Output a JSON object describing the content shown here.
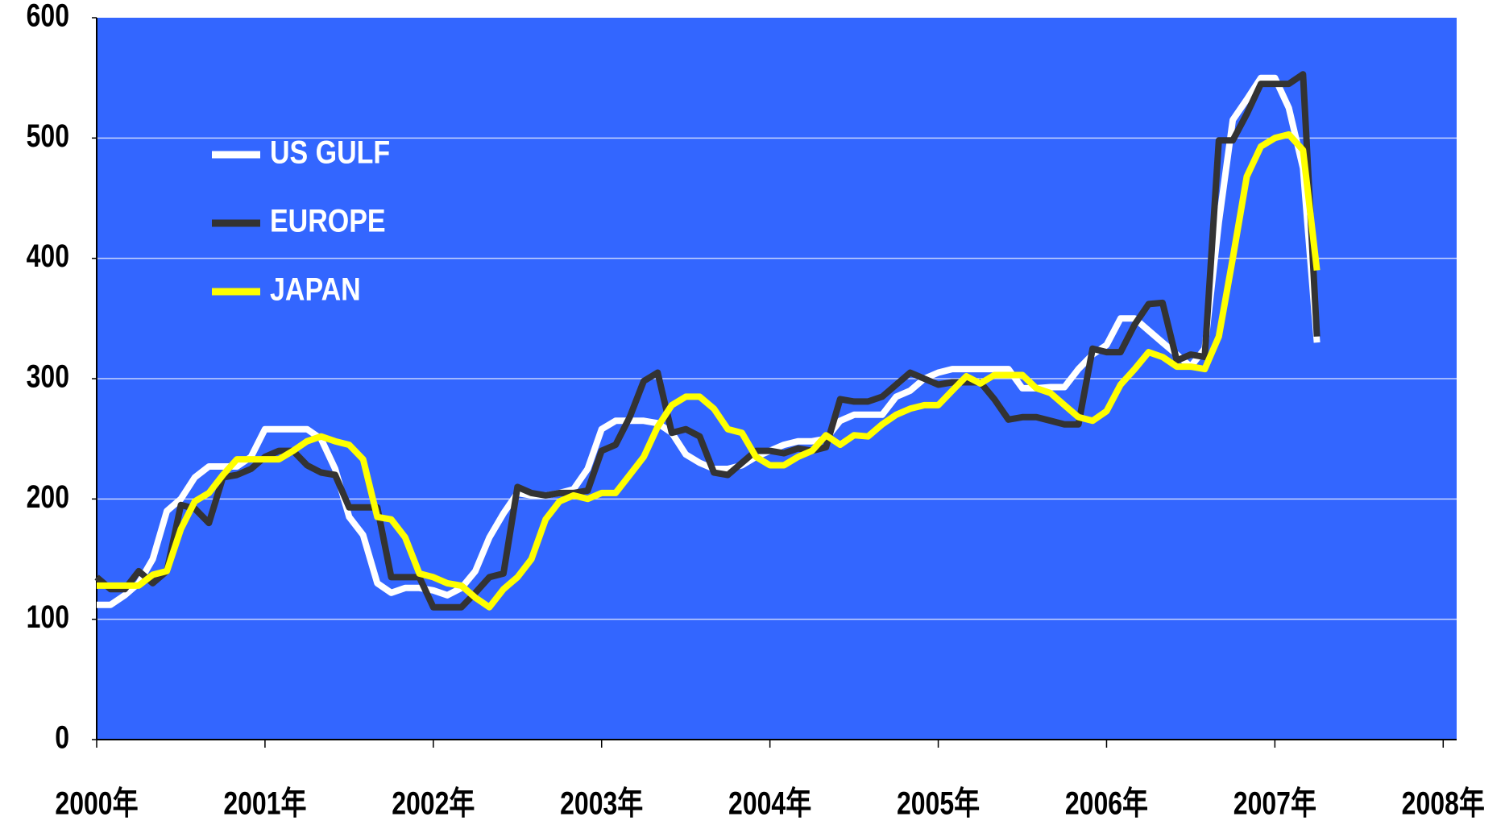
{
  "chart_data": {
    "type": "line",
    "x": [
      2000,
      2000.083,
      2000.167,
      2000.25,
      2000.333,
      2000.417,
      2000.5,
      2000.583,
      2000.667,
      2000.75,
      2000.833,
      2000.917,
      2001,
      2001.083,
      2001.167,
      2001.25,
      2001.333,
      2001.417,
      2001.5,
      2001.583,
      2001.667,
      2001.75,
      2001.833,
      2001.917,
      2002,
      2002.083,
      2002.167,
      2002.25,
      2002.333,
      2002.417,
      2002.5,
      2002.583,
      2002.667,
      2002.75,
      2002.833,
      2002.917,
      2003,
      2003.083,
      2003.167,
      2003.25,
      2003.333,
      2003.417,
      2003.5,
      2003.583,
      2003.667,
      2003.75,
      2003.833,
      2003.917,
      2004,
      2004.083,
      2004.167,
      2004.25,
      2004.333,
      2004.417,
      2004.5,
      2004.583,
      2004.667,
      2004.75,
      2004.833,
      2004.917,
      2005,
      2005.083,
      2005.167,
      2005.25,
      2005.333,
      2005.417,
      2005.5,
      2005.583,
      2005.667,
      2005.75,
      2005.833,
      2005.917,
      2006,
      2006.083,
      2006.167,
      2006.25,
      2006.333,
      2006.417,
      2006.5,
      2006.583,
      2006.667,
      2006.75,
      2006.833,
      2006.917,
      2007,
      2007.083,
      2007.167,
      2007.25
    ],
    "series": [
      {
        "name": "US GULF",
        "color": "#ffffff",
        "values": [
          112,
          112,
          120,
          130,
          150,
          190,
          200,
          218,
          227,
          227,
          227,
          235,
          258,
          258,
          258,
          258,
          250,
          225,
          185,
          170,
          130,
          122,
          126,
          126,
          124,
          120,
          126,
          140,
          168,
          188,
          205,
          203,
          203,
          205,
          208,
          225,
          258,
          265,
          265,
          265,
          263,
          255,
          237,
          230,
          225,
          225,
          228,
          235,
          240,
          245,
          248,
          248,
          250,
          265,
          270,
          270,
          270,
          285,
          290,
          300,
          305,
          308,
          308,
          308,
          308,
          308,
          292,
          292,
          293,
          293,
          308,
          320,
          328,
          350,
          350,
          340,
          330,
          320,
          310,
          325,
          430,
          515,
          532,
          550,
          550,
          525,
          475,
          330
        ]
      },
      {
        "name": "EUROPE",
        "color": "#333333",
        "values": [
          135,
          125,
          125,
          140,
          130,
          140,
          195,
          192,
          180,
          218,
          220,
          225,
          235,
          240,
          240,
          228,
          222,
          220,
          193,
          193,
          193,
          135,
          135,
          135,
          110,
          110,
          110,
          122,
          135,
          138,
          210,
          205,
          203,
          205,
          205,
          207,
          240,
          245,
          268,
          298,
          305,
          255,
          258,
          252,
          222,
          220,
          230,
          240,
          240,
          238,
          242,
          240,
          243,
          283,
          281,
          281,
          285,
          295,
          305,
          300,
          295,
          297,
          297,
          297,
          283,
          266,
          268,
          268,
          265,
          262,
          262,
          325,
          322,
          322,
          345,
          362,
          363,
          315,
          320,
          318,
          498,
          498,
          520,
          545,
          545,
          545,
          553,
          335
        ]
      },
      {
        "name": "JAPAN",
        "color": "#ffff00",
        "values": [
          128,
          128,
          128,
          128,
          137,
          140,
          175,
          198,
          205,
          220,
          233,
          233,
          233,
          233,
          240,
          248,
          252,
          248,
          245,
          233,
          185,
          183,
          168,
          138,
          135,
          130,
          128,
          118,
          110,
          125,
          135,
          150,
          183,
          198,
          203,
          200,
          205,
          205,
          220,
          235,
          260,
          278,
          285,
          285,
          275,
          258,
          255,
          235,
          228,
          228,
          235,
          240,
          253,
          245,
          253,
          252,
          262,
          270,
          275,
          278,
          278,
          290,
          302,
          296,
          303,
          303,
          303,
          292,
          288,
          278,
          268,
          265,
          273,
          295,
          308,
          322,
          318,
          310,
          310,
          308,
          335,
          400,
          468,
          493,
          500,
          503,
          490,
          390
        ]
      }
    ],
    "xlim": [
      2000,
      2008.08
    ],
    "xticks": [
      {
        "value": 2000,
        "label": "2000年"
      },
      {
        "value": 2001,
        "label": "2001年"
      },
      {
        "value": 2002,
        "label": "2002年"
      },
      {
        "value": 2003,
        "label": "2003年"
      },
      {
        "value": 2004,
        "label": "2004年"
      },
      {
        "value": 2005,
        "label": "2005年"
      },
      {
        "value": 2006,
        "label": "2006年"
      },
      {
        "value": 2007,
        "label": "2007年"
      },
      {
        "value": 2008,
        "label": "2008年"
      }
    ],
    "ylim": [
      0,
      600
    ],
    "yticks": [
      0,
      100,
      200,
      300,
      400,
      500,
      600
    ],
    "grid": true,
    "background": "#3366ff",
    "legend": "upper left"
  }
}
